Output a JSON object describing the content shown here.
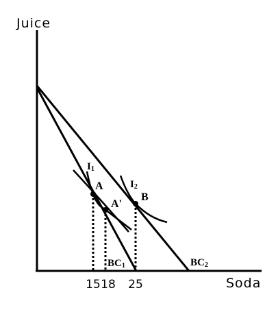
{
  "axes": {
    "y_title": "Juice",
    "x_title": "Soda"
  },
  "ticks": [
    "15",
    "18",
    "25"
  ],
  "budget_lines": [
    {
      "label": "BC",
      "sub": "1"
    },
    {
      "label": "BC",
      "sub": "2"
    }
  ],
  "indifference_curves": [
    {
      "label": "I",
      "sub": "1"
    },
    {
      "label": "I",
      "sub": "2"
    }
  ],
  "points": [
    {
      "label": "A",
      "soda": 15
    },
    {
      "label": "A'",
      "soda": 18
    },
    {
      "label": "B",
      "soda": 25
    }
  ]
}
